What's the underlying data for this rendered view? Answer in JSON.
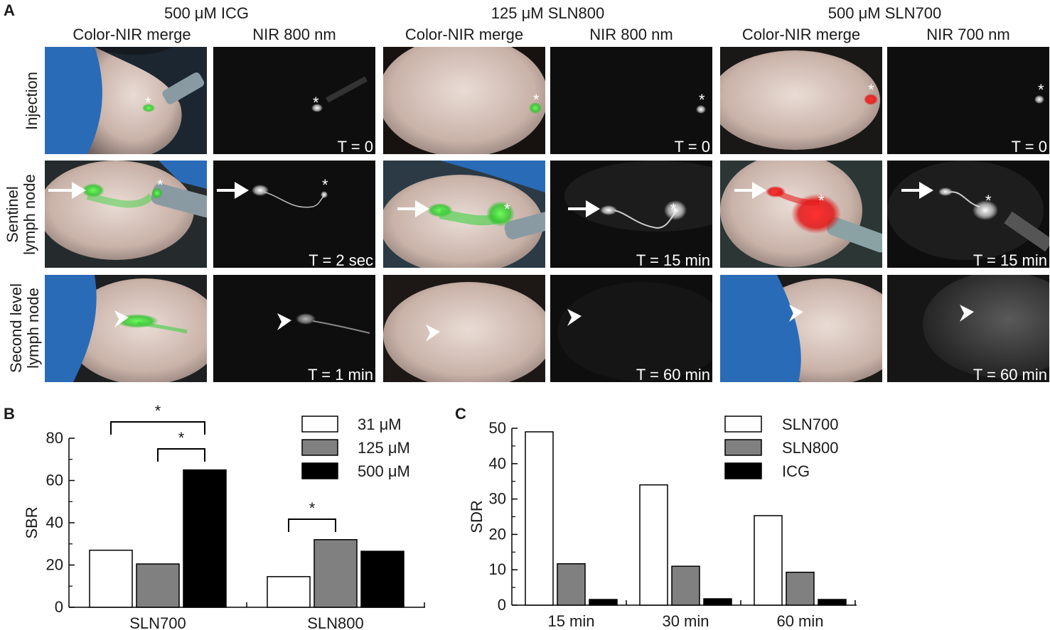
{
  "panel_a": {
    "letter": "A",
    "groups": [
      {
        "title": "500 μM ICG",
        "cols": [
          "Color-NIR merge",
          "NIR 800 nm"
        ],
        "times": [
          "T = 0",
          "T = 2 sec",
          "T = 1 min"
        ]
      },
      {
        "title": "125 μM SLN800",
        "cols": [
          "Color-NIR merge",
          "NIR 800 nm"
        ],
        "times": [
          "T = 0",
          "T = 15 min",
          "T = 60 min"
        ]
      },
      {
        "title": "500 μM SLN700",
        "cols": [
          "Color-NIR merge",
          "NIR 700 nm"
        ],
        "times": [
          "T = 0",
          "T = 15 min",
          "T = 60 min"
        ]
      }
    ],
    "row_labels": [
      [
        "Injection"
      ],
      [
        "Sentinel",
        "lymph node"
      ],
      [
        "Second level",
        "lymph node"
      ]
    ],
    "star": "*",
    "signal_colors": {
      "ICG": "#3fcf3f",
      "SLN800": "#3fcf3f",
      "SLN700": "#e81c1c"
    }
  },
  "chart_data": [
    {
      "panel": "B",
      "type": "bar",
      "ylabel": "SBR",
      "ylim": [
        0,
        80
      ],
      "yticks": [
        0,
        20,
        40,
        60,
        80
      ],
      "categories": [
        "SLN700",
        "SLN800"
      ],
      "series": [
        {
          "name": "31 μM",
          "values": [
            27,
            14.5
          ],
          "color": "#ffffff"
        },
        {
          "name": "125 μM",
          "values": [
            20.5,
            32
          ],
          "color": "#808080"
        },
        {
          "name": "500 μM",
          "values": [
            65,
            26.5
          ],
          "color": "#000000"
        }
      ],
      "significance": [
        {
          "label": "*",
          "category": 0,
          "from_series": 0,
          "to_series": 2
        },
        {
          "label": "*",
          "category": 0,
          "from_series": 1,
          "to_series": 2
        },
        {
          "label": "*",
          "category": 1,
          "from_series": 0,
          "to_series": 1
        }
      ],
      "legend_position": "top-right"
    },
    {
      "panel": "C",
      "type": "bar",
      "ylabel": "SDR",
      "ylim": [
        0,
        50
      ],
      "yticks": [
        0,
        10,
        20,
        30,
        40,
        50
      ],
      "categories": [
        "15 min",
        "30 min",
        "60 min"
      ],
      "series": [
        {
          "name": "SLN700",
          "values": [
            49,
            34,
            25.3
          ],
          "color": "#ffffff"
        },
        {
          "name": "SLN800",
          "values": [
            11.7,
            11,
            9.3
          ],
          "color": "#808080"
        },
        {
          "name": "ICG",
          "values": [
            1.6,
            1.8,
            1.6
          ],
          "color": "#000000"
        }
      ],
      "legend_position": "top-right"
    }
  ]
}
